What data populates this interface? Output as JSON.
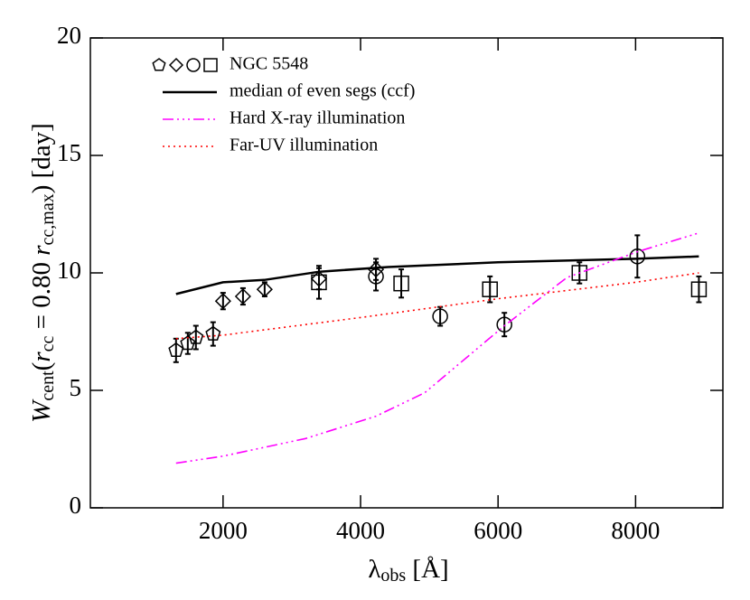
{
  "chart_data": {
    "type": "line",
    "xlabel": [
      {
        "text": "λ",
        "style": "normal"
      },
      {
        "text": "obs",
        "style": "sub"
      },
      {
        "text": " [Å]",
        "style": "normal"
      }
    ],
    "ylabel": [
      {
        "text": "W",
        "style": "italic"
      },
      {
        "text": "cent",
        "style": "sub"
      },
      {
        "text": "(",
        "style": "normal"
      },
      {
        "text": "r",
        "style": "italic"
      },
      {
        "text": "cc",
        "style": "sub"
      },
      {
        "text": " = 0.80 ",
        "style": "normal"
      },
      {
        "text": "r",
        "style": "italic"
      },
      {
        "text": "cc,max",
        "style": "sub"
      },
      {
        "text": ") [day]",
        "style": "normal"
      }
    ],
    "xlim": [
      70,
      9270
    ],
    "xticks": [
      2000,
      4000,
      6000,
      8000
    ],
    "ylim": [
      0,
      20
    ],
    "yticks": [
      0,
      5,
      10,
      15,
      20
    ],
    "legend": "upper left",
    "series": [
      {
        "name": "NGC 5548",
        "kind": "scatter",
        "color": "#000000",
        "x": [
          1316,
          1487,
          1605,
          1855,
          2000,
          2290,
          2605,
          3395,
          3395,
          4224,
          4224,
          4592,
          5158,
          5882,
          6092,
          7184,
          8026,
          8921
        ],
        "values": [
          6.7,
          7.0,
          7.25,
          7.4,
          8.8,
          9.0,
          9.3,
          9.75,
          9.6,
          10.15,
          9.85,
          9.55,
          8.15,
          9.3,
          7.8,
          10.0,
          10.7,
          9.3
        ],
        "errors": [
          0.5,
          0.45,
          0.5,
          0.5,
          0.35,
          0.35,
          0.3,
          0.45,
          0.7,
          0.45,
          0.6,
          0.6,
          0.4,
          0.55,
          0.5,
          0.45,
          0.9,
          0.55
        ],
        "markers": [
          "pentagon",
          "pentagon",
          "pentagon",
          "pentagon",
          "diamond",
          "diamond",
          "diamond",
          "diamond",
          "square",
          "diamond",
          "circle",
          "square",
          "circle",
          "square",
          "circle",
          "square",
          "circle",
          "square"
        ],
        "legend_markers": [
          "pentagon",
          "diamond",
          "circle",
          "square"
        ]
      },
      {
        "name": "median of even segs (ccf)",
        "kind": "line",
        "color": "#000000",
        "dash": "solid",
        "x": [
          1316,
          2000,
          2600,
          3400,
          4400,
          6000,
          8000,
          8921
        ],
        "values": [
          9.1,
          9.6,
          9.7,
          10.05,
          10.25,
          10.45,
          10.6,
          10.7
        ]
      },
      {
        "name": "Hard X-ray illumination",
        "kind": "line",
        "color": "#ff00ff",
        "dash": "dashdotdotdot",
        "x": [
          1316,
          2000,
          3200,
          4224,
          4934,
          6092,
          7000,
          8026,
          8921
        ],
        "values": [
          1.9,
          2.2,
          2.95,
          3.9,
          4.9,
          7.75,
          9.8,
          10.9,
          11.7
        ]
      },
      {
        "name": "Far-UV illumination",
        "kind": "line",
        "color": "#ff0000",
        "dash": "dotted",
        "x": [
          1316,
          2000,
          4000,
          6000,
          8000,
          8921
        ],
        "values": [
          7.2,
          7.35,
          8.1,
          8.9,
          9.6,
          10.0
        ]
      }
    ]
  }
}
